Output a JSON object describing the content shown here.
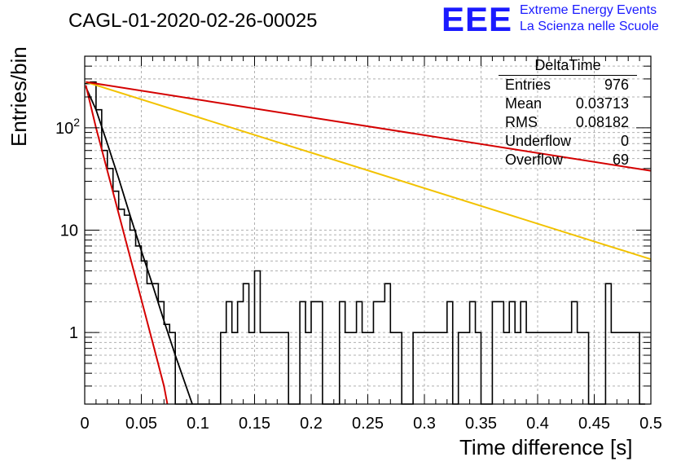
{
  "title": "CAGL-01-2020-02-26-00025",
  "logo": {
    "mark": "EEE",
    "line1": "Extreme Energy Events",
    "line2": "La Scienza nelle Scuole"
  },
  "stats": {
    "title": "DeltaTime",
    "rows": [
      {
        "key": "Entries",
        "value": "976"
      },
      {
        "key": "Mean",
        "value": "0.03713"
      },
      {
        "key": "RMS",
        "value": "0.08182"
      },
      {
        "key": "Underflow",
        "value": "0"
      },
      {
        "key": "Overflow",
        "value": "69"
      }
    ]
  },
  "colors": {
    "histogram": "#000000",
    "fit_black": "#000000",
    "fit_red": "#d40000",
    "fit_yellow": "#f2c200",
    "grid": "#b0b0b0"
  },
  "chart_data": {
    "type": "bar",
    "histogram_style": "step",
    "title": "CAGL-01-2020-02-26-00025",
    "xlabel": "Time difference [s]",
    "ylabel": "Entries/bin",
    "xlim": [
      0,
      0.5
    ],
    "ylim": [
      0.2,
      500
    ],
    "ylog": true,
    "grid": true,
    "legend": "top-right",
    "x_ticks": [
      "0",
      "0.05",
      "0.1",
      "0.15",
      "0.2",
      "0.25",
      "0.3",
      "0.35",
      "0.4",
      "0.45",
      "0.5"
    ],
    "y_ticks": [
      "1",
      "10",
      "10^2"
    ],
    "bin_width": 0.005,
    "bin_edges_start": 0,
    "values": [
      270,
      280,
      150,
      60,
      40,
      24,
      16,
      14,
      10,
      7,
      5,
      3,
      3,
      2,
      1.2,
      1,
      0,
      0,
      0,
      0,
      0,
      0,
      0,
      0,
      1,
      2,
      1,
      2,
      3,
      1,
      4,
      1,
      1,
      1,
      1,
      1,
      0,
      0,
      2,
      1,
      2,
      2,
      0,
      0,
      0,
      2,
      1,
      1,
      2,
      1,
      1,
      2,
      2,
      3,
      1,
      1,
      0,
      0,
      1,
      1,
      1,
      1,
      1,
      1,
      2,
      0,
      1,
      1,
      2,
      1,
      0,
      0,
      2,
      2,
      1,
      2,
      1,
      2,
      1,
      1,
      1,
      1,
      1,
      1,
      1,
      1,
      2,
      1,
      1,
      0,
      0,
      0,
      3,
      1,
      1,
      1,
      1,
      1,
      0
    ],
    "series": [
      {
        "x": [
          0.001,
          0.01,
          0.02,
          0.03,
          0.04,
          0.05,
          0.06,
          0.07,
          0.08,
          0.095
        ],
        "values": [
          250,
          150,
          70,
          32,
          14,
          6.3,
          2.9,
          1.3,
          0.6,
          0.2
        ]
      },
      {
        "x": [
          0.001,
          0.01,
          0.02,
          0.03,
          0.04,
          0.05,
          0.06,
          0.07,
          0.073
        ],
        "values": [
          260,
          100,
          38,
          14.5,
          5.5,
          2.1,
          0.8,
          0.3,
          0.2
        ]
      },
      {
        "x": [
          0.001,
          0.5
        ],
        "values": [
          280,
          5.2
        ]
      },
      {
        "x": [
          0.001,
          0.5
        ],
        "values": [
          280,
          38
        ]
      }
    ]
  }
}
